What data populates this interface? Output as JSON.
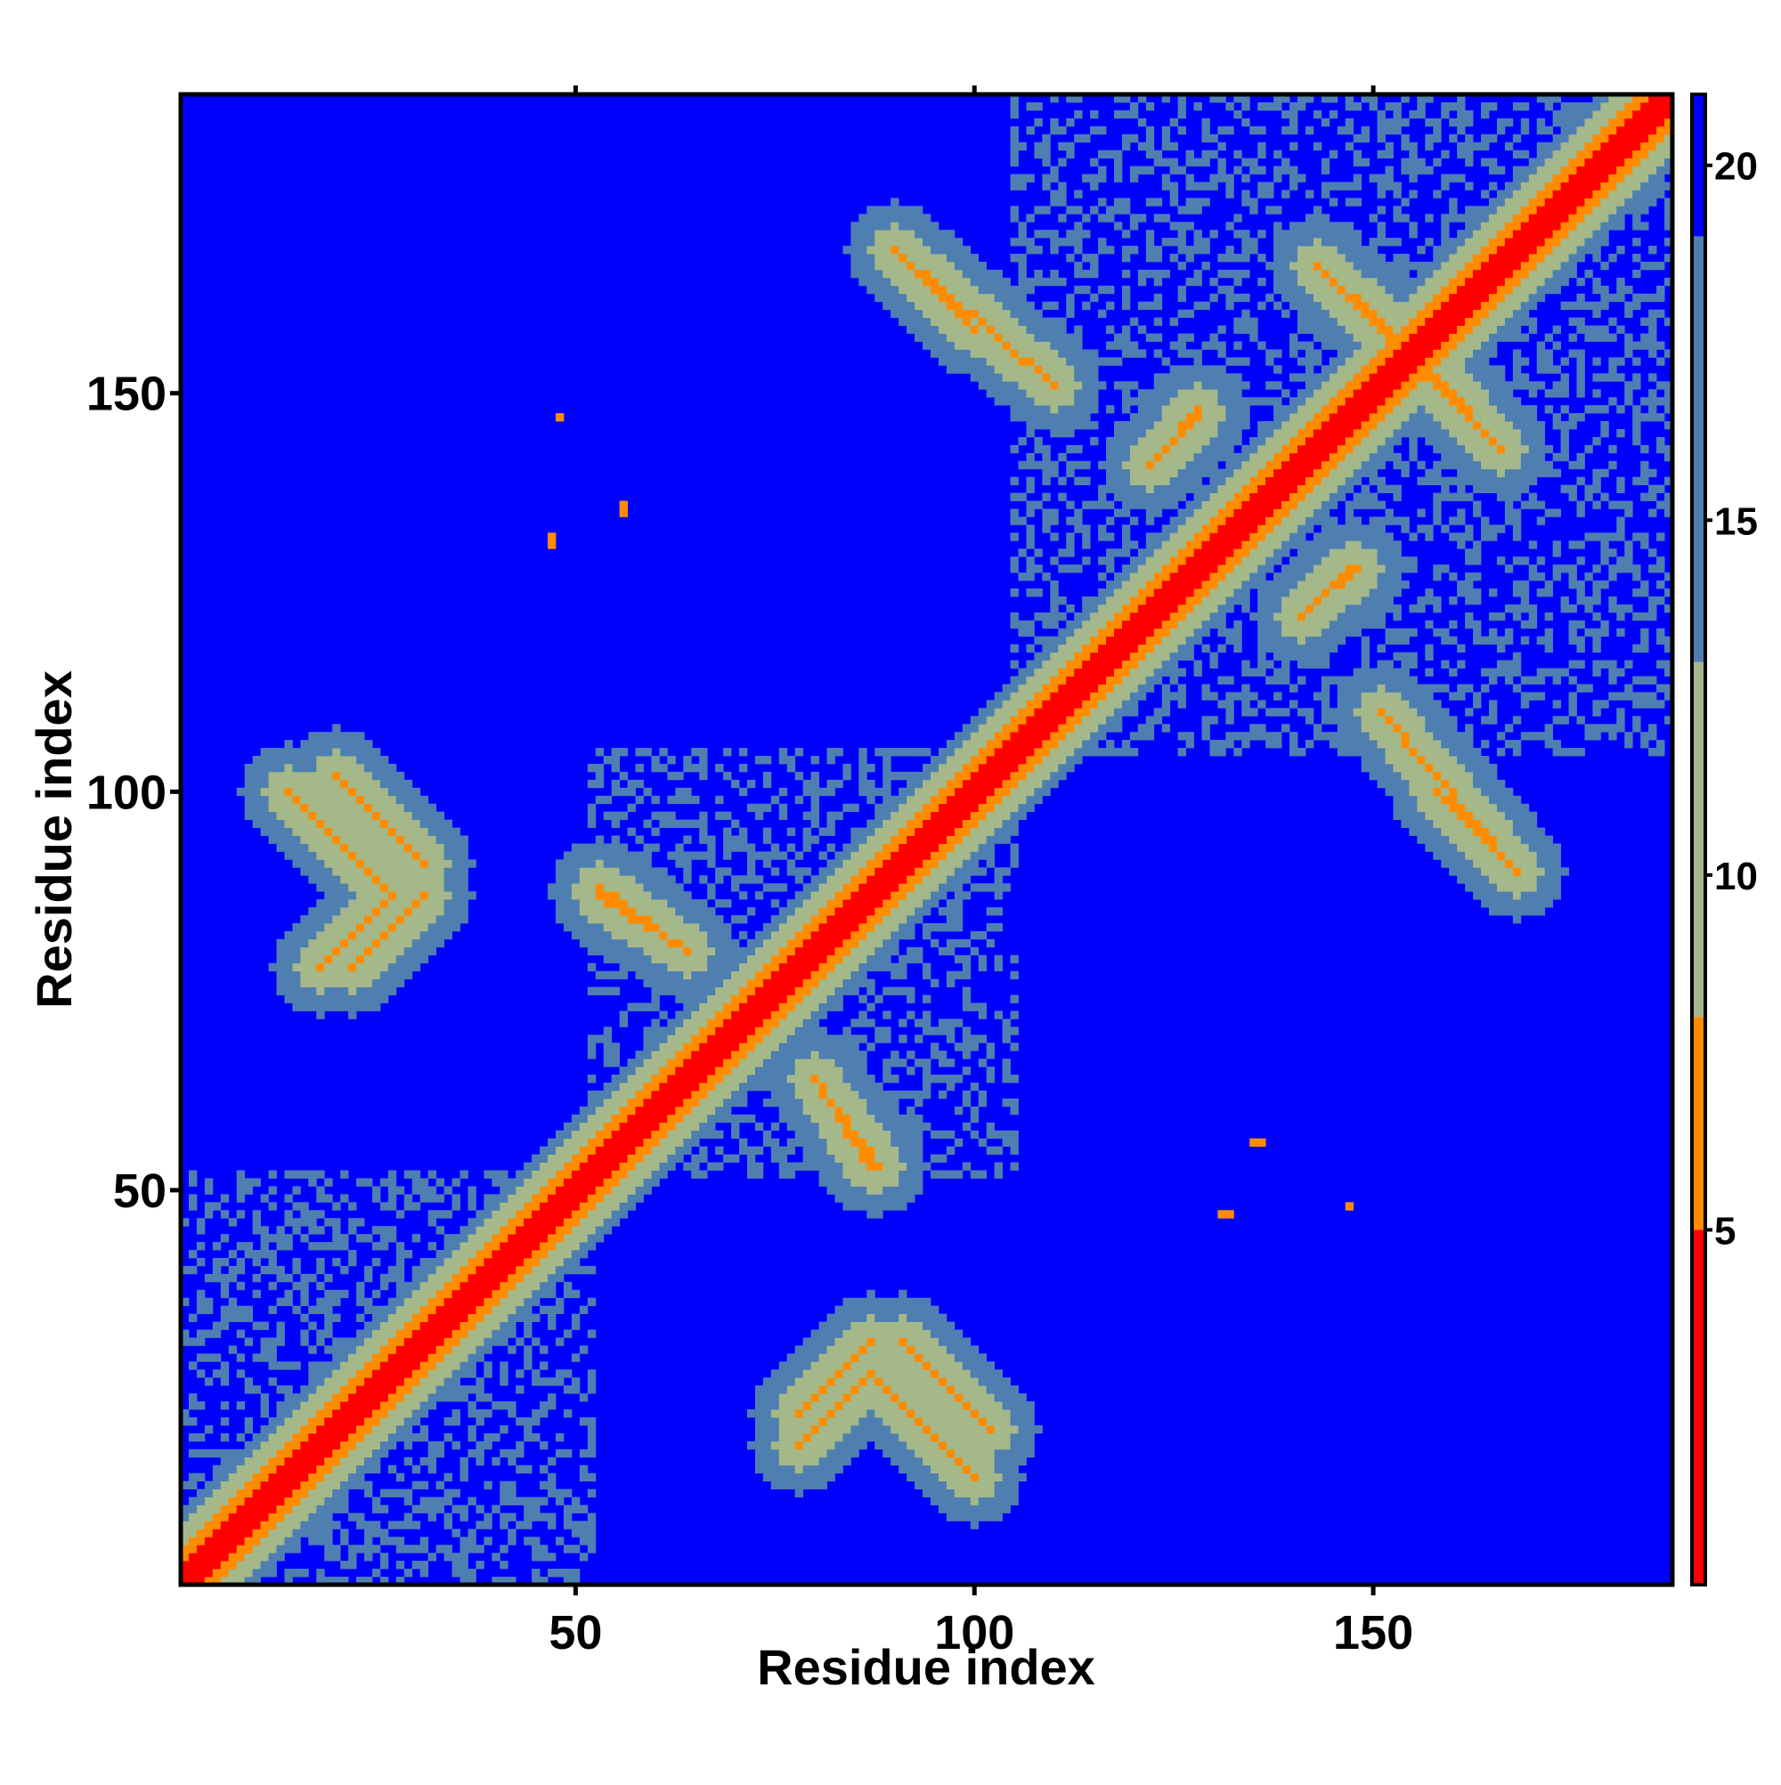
{
  "chart_data": {
    "type": "heatmap",
    "title": "",
    "xlabel": "Residue index",
    "ylabel": "Residue index",
    "xlim": [
      1,
      187
    ],
    "ylim": [
      1,
      187
    ],
    "x_ticks": [
      50,
      100,
      150
    ],
    "y_ticks": [
      50,
      100,
      150
    ],
    "x_tick_labels": [
      "50",
      "100",
      "150"
    ],
    "y_tick_labels": [
      "50",
      "100",
      "150"
    ],
    "grid": false,
    "legend": "colorbar-right",
    "colorbar": {
      "range": [
        0,
        21
      ],
      "ticks": [
        5,
        10,
        15,
        20
      ],
      "tick_labels": [
        "5",
        "10",
        "15",
        "20"
      ],
      "colors": {
        "close": "#ff0000",
        "near": "#ff8c00",
        "mid": "#a4b88a",
        "far": "#4f7fb0",
        "background": "#0000ff"
      }
    },
    "n_residues": 187,
    "diagonal_band": {
      "from": 1,
      "to": 187,
      "half_width": 2
    },
    "contacts": [
      {
        "kind": "antiparallel",
        "x1": 88,
        "y1": 26,
        "x2": 100,
        "y2": 14
      },
      {
        "kind": "antiparallel",
        "x1": 20,
        "y1": 102,
        "x2": 31,
        "y2": 91
      },
      {
        "kind": "parallel",
        "x1": 78,
        "y1": 18,
        "x2": 87,
        "y2": 27
      },
      {
        "kind": "parallel",
        "x1": 22,
        "y1": 78,
        "x2": 31,
        "y2": 87
      },
      {
        "kind": "antiparallel",
        "x1": 53,
        "y1": 88,
        "x2": 64,
        "y2": 80
      },
      {
        "kind": "antiparallel",
        "x1": 80,
        "y1": 64,
        "x2": 87,
        "y2": 53
      },
      {
        "kind": "antiparallel",
        "x1": 90,
        "y1": 168,
        "x2": 100,
        "y2": 158
      },
      {
        "kind": "antiparallel",
        "x1": 143,
        "y1": 166,
        "x2": 162,
        "y2": 148
      },
      {
        "kind": "antiparallel",
        "x1": 157,
        "y1": 103,
        "x2": 167,
        "y2": 91
      },
      {
        "kind": "parallel",
        "x1": 123,
        "y1": 142,
        "x2": 128,
        "y2": 148
      },
      {
        "kind": "parallel",
        "x1": 141,
        "y1": 122,
        "x2": 147,
        "y2": 128
      },
      {
        "kind": "antiparallel",
        "x1": 103,
        "y1": 157,
        "x2": 110,
        "y2": 151
      },
      {
        "kind": "single",
        "x1": 48,
        "y1": 147,
        "x2": 48,
        "y2": 147
      },
      {
        "kind": "single",
        "x1": 56,
        "y1": 135,
        "x2": 56,
        "y2": 136
      },
      {
        "kind": "single",
        "x1": 47,
        "y1": 132,
        "x2": 47,
        "y2": 132
      },
      {
        "kind": "single",
        "x1": 135,
        "y1": 56,
        "x2": 136,
        "y2": 56
      },
      {
        "kind": "single",
        "x1": 131,
        "y1": 47,
        "x2": 131,
        "y2": 47
      },
      {
        "kind": "single",
        "x1": 147,
        "y1": 48,
        "x2": 147,
        "y2": 48
      }
    ],
    "domains": [
      {
        "from": 1,
        "to": 52
      },
      {
        "from": 52,
        "to": 105
      },
      {
        "from": 105,
        "to": 187
      }
    ]
  }
}
